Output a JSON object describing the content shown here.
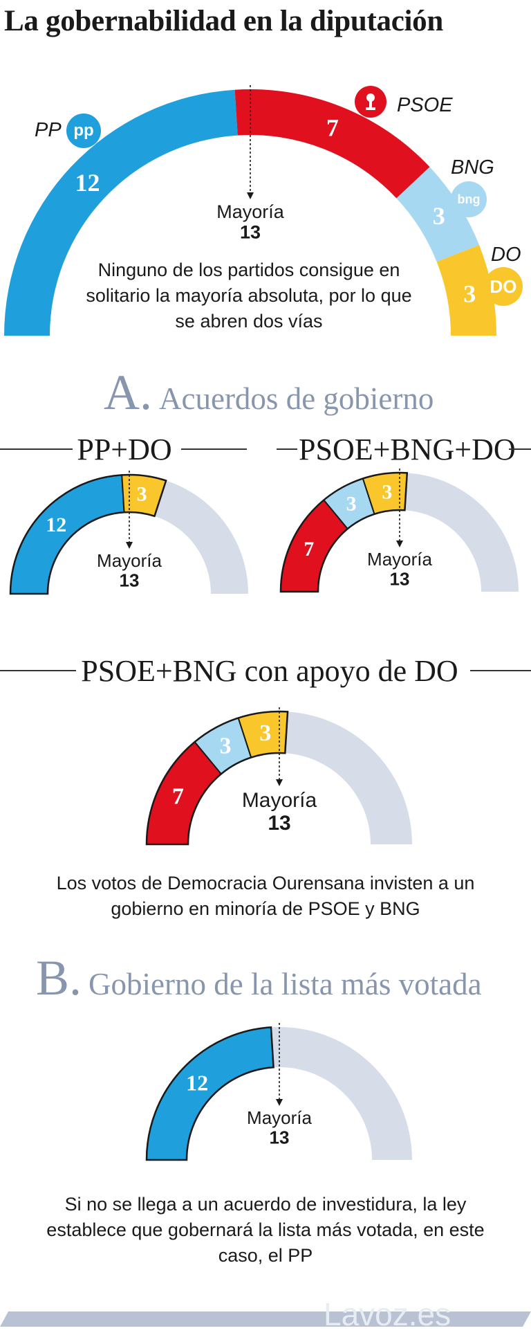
{
  "title": "La gobernabilidad en la diputación",
  "colors": {
    "PP": "#1f9fdb",
    "PSOE": "#e0101e",
    "BNG": "#a7d8f2",
    "DO": "#f9c62b",
    "empty": "#d7dde8",
    "section": "#8896ad"
  },
  "parties": {
    "PP": {
      "name": "PP",
      "logo": "pp",
      "logo_icon": "pp-logo-icon"
    },
    "PSOE": {
      "name": "PSOE",
      "logo_icon": "psoe-logo-icon"
    },
    "BNG": {
      "name": "BNG",
      "logo": "bng",
      "logo_icon": "bng-logo-icon"
    },
    "DO": {
      "name": "DO",
      "logo": "DO",
      "logo_icon": "do-logo-icon"
    }
  },
  "main": {
    "majority_label": "Mayoría",
    "majority_value": "13",
    "description": "Ninguno de los partidos consigue en solitario la mayoría absoluta, por lo que se abren dos vías"
  },
  "section_a": {
    "letter": "A.",
    "title": "Acuerdos de gobierno"
  },
  "combo_pp_do": {
    "title": "PP+DO",
    "majority_label": "Mayoría",
    "majority_value": "13"
  },
  "combo_psoe_bng_do": {
    "title": "PSOE+BNG+DO",
    "majority_label": "Mayoría",
    "majority_value": "13"
  },
  "combo_support": {
    "title": "PSOE+BNG con apoyo de DO",
    "majority_label": "Mayoría",
    "majority_value": "13",
    "description": "Los votos de Democracia Ourensana invisten a un gobierno en minoría de PSOE y BNG"
  },
  "section_b": {
    "letter": "B.",
    "title": "Gobierno de la lista más votada"
  },
  "combo_pp": {
    "majority_label": "Mayoría",
    "majority_value": "13",
    "description": "Si no se llega a un acuerdo de investidura, la ley establece que gobernará la lista más votada, en este caso, el PP"
  },
  "footer": {
    "brand": "Lavoz.es"
  },
  "chart_data": [
    {
      "type": "pie",
      "shape": "half-donut",
      "total_seats": 25,
      "majority": 13,
      "categories": [
        "PP",
        "PSOE",
        "BNG",
        "DO"
      ],
      "values": [
        12,
        7,
        3,
        3
      ]
    },
    {
      "type": "pie",
      "shape": "half-donut",
      "title": "PP+DO",
      "total_seats": 25,
      "majority": 13,
      "categories": [
        "PP",
        "DO"
      ],
      "values": [
        12,
        3
      ]
    },
    {
      "type": "pie",
      "shape": "half-donut",
      "title": "PSOE+BNG+DO",
      "total_seats": 25,
      "majority": 13,
      "categories": [
        "PSOE",
        "BNG",
        "DO"
      ],
      "values": [
        7,
        3,
        3
      ]
    },
    {
      "type": "pie",
      "shape": "half-donut",
      "title": "PSOE+BNG con apoyo de DO",
      "total_seats": 25,
      "majority": 13,
      "categories": [
        "PSOE",
        "BNG",
        "DO"
      ],
      "values": [
        7,
        3,
        3
      ]
    },
    {
      "type": "pie",
      "shape": "half-donut",
      "total_seats": 25,
      "majority": 13,
      "categories": [
        "PP"
      ],
      "values": [
        12
      ]
    }
  ]
}
